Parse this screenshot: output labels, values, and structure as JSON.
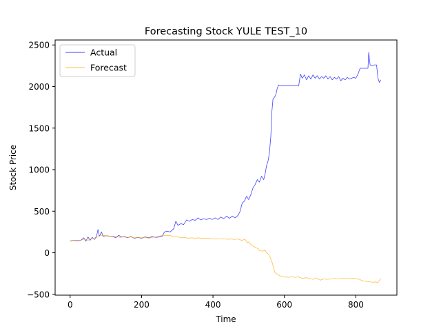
{
  "chart_data": {
    "type": "line",
    "title": "Forecasting Stock YULE TEST_10",
    "xlabel": "Time",
    "ylabel": "Stock Price",
    "xlim": [
      -42,
      915
    ],
    "ylim": [
      -510,
      2560
    ],
    "xticks": [
      0,
      200,
      400,
      600,
      800
    ],
    "yticks": [
      -500,
      0,
      500,
      1000,
      1500,
      2000,
      2500
    ],
    "grid": false,
    "legend_position": "top-left",
    "series": [
      {
        "name": "Actual",
        "color": "#0000ff",
        "points": [
          [
            0,
            140
          ],
          [
            10,
            150
          ],
          [
            20,
            145
          ],
          [
            30,
            150
          ],
          [
            38,
            180
          ],
          [
            44,
            140
          ],
          [
            50,
            190
          ],
          [
            56,
            150
          ],
          [
            62,
            185
          ],
          [
            68,
            160
          ],
          [
            74,
            200
          ],
          [
            78,
            280
          ],
          [
            82,
            200
          ],
          [
            88,
            250
          ],
          [
            92,
            200
          ],
          [
            100,
            205
          ],
          [
            110,
            200
          ],
          [
            120,
            195
          ],
          [
            128,
            180
          ],
          [
            136,
            210
          ],
          [
            144,
            190
          ],
          [
            152,
            195
          ],
          [
            160,
            180
          ],
          [
            170,
            195
          ],
          [
            180,
            175
          ],
          [
            190,
            185
          ],
          [
            200,
            175
          ],
          [
            210,
            190
          ],
          [
            220,
            180
          ],
          [
            230,
            195
          ],
          [
            240,
            185
          ],
          [
            250,
            190
          ],
          [
            258,
            200
          ],
          [
            264,
            250
          ],
          [
            272,
            260
          ],
          [
            280,
            250
          ],
          [
            290,
            290
          ],
          [
            296,
            380
          ],
          [
            302,
            330
          ],
          [
            310,
            350
          ],
          [
            318,
            340
          ],
          [
            326,
            395
          ],
          [
            334,
            380
          ],
          [
            342,
            400
          ],
          [
            350,
            390
          ],
          [
            358,
            420
          ],
          [
            366,
            395
          ],
          [
            374,
            410
          ],
          [
            382,
            400
          ],
          [
            390,
            415
          ],
          [
            398,
            400
          ],
          [
            406,
            420
          ],
          [
            414,
            400
          ],
          [
            422,
            430
          ],
          [
            430,
            410
          ],
          [
            438,
            440
          ],
          [
            446,
            415
          ],
          [
            454,
            440
          ],
          [
            462,
            420
          ],
          [
            470,
            450
          ],
          [
            476,
            500
          ],
          [
            482,
            600
          ],
          [
            488,
            620
          ],
          [
            494,
            680
          ],
          [
            500,
            640
          ],
          [
            506,
            700
          ],
          [
            512,
            780
          ],
          [
            518,
            820
          ],
          [
            524,
            880
          ],
          [
            530,
            850
          ],
          [
            536,
            920
          ],
          [
            542,
            880
          ],
          [
            546,
            950
          ],
          [
            550,
            1050
          ],
          [
            554,
            1100
          ],
          [
            558,
            1200
          ],
          [
            562,
            1400
          ],
          [
            565,
            1700
          ],
          [
            568,
            1850
          ],
          [
            572,
            1870
          ],
          [
            576,
            1900
          ],
          [
            580,
            1980
          ],
          [
            584,
            2020
          ],
          [
            590,
            2010
          ],
          [
            600,
            2010
          ],
          [
            610,
            2010
          ],
          [
            620,
            2010
          ],
          [
            630,
            2010
          ],
          [
            640,
            2010
          ],
          [
            645,
            2150
          ],
          [
            650,
            2100
          ],
          [
            656,
            2140
          ],
          [
            662,
            2080
          ],
          [
            668,
            2130
          ],
          [
            674,
            2090
          ],
          [
            680,
            2140
          ],
          [
            686,
            2100
          ],
          [
            692,
            2130
          ],
          [
            698,
            2090
          ],
          [
            704,
            2120
          ],
          [
            710,
            2100
          ],
          [
            716,
            2130
          ],
          [
            722,
            2090
          ],
          [
            728,
            2120
          ],
          [
            734,
            2080
          ],
          [
            740,
            2110
          ],
          [
            746,
            2090
          ],
          [
            752,
            2120
          ],
          [
            758,
            2070
          ],
          [
            764,
            2100
          ],
          [
            770,
            2080
          ],
          [
            776,
            2110
          ],
          [
            782,
            2090
          ],
          [
            788,
            2100
          ],
          [
            794,
            2110
          ],
          [
            800,
            2100
          ],
          [
            806,
            2150
          ],
          [
            812,
            2220
          ],
          [
            820,
            2220
          ],
          [
            826,
            2220
          ],
          [
            834,
            2220
          ],
          [
            836,
            2410
          ],
          [
            840,
            2260
          ],
          [
            846,
            2250
          ],
          [
            852,
            2260
          ],
          [
            858,
            2260
          ],
          [
            862,
            2100
          ],
          [
            866,
            2050
          ],
          [
            870,
            2080
          ]
        ]
      },
      {
        "name": "Forecast",
        "color": "#ffa500",
        "points": [
          [
            0,
            145
          ],
          [
            10,
            150
          ],
          [
            20,
            140
          ],
          [
            30,
            150
          ],
          [
            40,
            165
          ],
          [
            50,
            150
          ],
          [
            60,
            170
          ],
          [
            70,
            170
          ],
          [
            80,
            200
          ],
          [
            90,
            210
          ],
          [
            100,
            205
          ],
          [
            110,
            200
          ],
          [
            120,
            200
          ],
          [
            130,
            195
          ],
          [
            140,
            185
          ],
          [
            150,
            190
          ],
          [
            160,
            185
          ],
          [
            170,
            190
          ],
          [
            180,
            180
          ],
          [
            190,
            185
          ],
          [
            200,
            180
          ],
          [
            210,
            185
          ],
          [
            220,
            175
          ],
          [
            230,
            185
          ],
          [
            240,
            190
          ],
          [
            250,
            200
          ],
          [
            260,
            210
          ],
          [
            270,
            205
          ],
          [
            280,
            210
          ],
          [
            290,
            190
          ],
          [
            300,
            195
          ],
          [
            310,
            180
          ],
          [
            320,
            185
          ],
          [
            330,
            175
          ],
          [
            340,
            180
          ],
          [
            350,
            175
          ],
          [
            360,
            180
          ],
          [
            370,
            170
          ],
          [
            380,
            175
          ],
          [
            390,
            170
          ],
          [
            400,
            165
          ],
          [
            410,
            168
          ],
          [
            420,
            165
          ],
          [
            430,
            168
          ],
          [
            440,
            162
          ],
          [
            450,
            165
          ],
          [
            460,
            160
          ],
          [
            470,
            165
          ],
          [
            480,
            150
          ],
          [
            490,
            160
          ],
          [
            496,
            120
          ],
          [
            500,
            130
          ],
          [
            506,
            100
          ],
          [
            510,
            90
          ],
          [
            516,
            70
          ],
          [
            520,
            60
          ],
          [
            526,
            50
          ],
          [
            530,
            25
          ],
          [
            540,
            20
          ],
          [
            546,
            30
          ],
          [
            550,
            0
          ],
          [
            556,
            -20
          ],
          [
            560,
            -50
          ],
          [
            566,
            -120
          ],
          [
            570,
            -190
          ],
          [
            574,
            -240
          ],
          [
            580,
            -260
          ],
          [
            586,
            -275
          ],
          [
            592,
            -285
          ],
          [
            600,
            -290
          ],
          [
            610,
            -295
          ],
          [
            620,
            -290
          ],
          [
            630,
            -295
          ],
          [
            640,
            -290
          ],
          [
            650,
            -310
          ],
          [
            660,
            -300
          ],
          [
            670,
            -310
          ],
          [
            680,
            -320
          ],
          [
            690,
            -305
          ],
          [
            700,
            -330
          ],
          [
            710,
            -315
          ],
          [
            720,
            -320
          ],
          [
            730,
            -315
          ],
          [
            740,
            -310
          ],
          [
            750,
            -315
          ],
          [
            760,
            -310
          ],
          [
            770,
            -310
          ],
          [
            780,
            -312
          ],
          [
            790,
            -308
          ],
          [
            800,
            -310
          ],
          [
            810,
            -320
          ],
          [
            820,
            -340
          ],
          [
            830,
            -345
          ],
          [
            840,
            -350
          ],
          [
            850,
            -355
          ],
          [
            856,
            -350
          ],
          [
            860,
            -360
          ],
          [
            864,
            -345
          ],
          [
            870,
            -310
          ]
        ]
      }
    ]
  }
}
